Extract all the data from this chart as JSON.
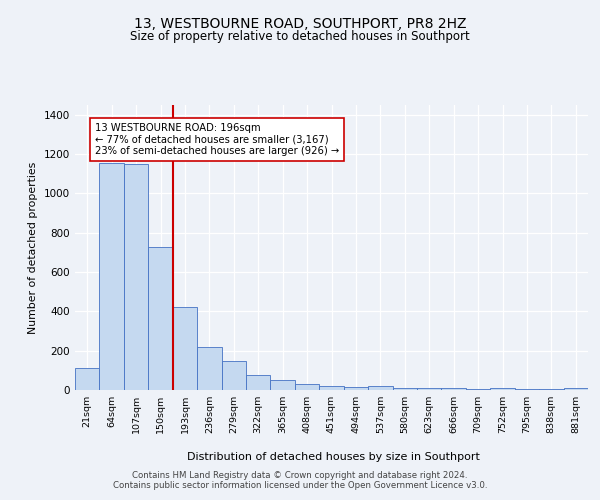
{
  "title": "13, WESTBOURNE ROAD, SOUTHPORT, PR8 2HZ",
  "subtitle": "Size of property relative to detached houses in Southport",
  "xlabel": "Distribution of detached houses by size in Southport",
  "ylabel": "Number of detached properties",
  "categories": [
    "21sqm",
    "64sqm",
    "107sqm",
    "150sqm",
    "193sqm",
    "236sqm",
    "279sqm",
    "322sqm",
    "365sqm",
    "408sqm",
    "451sqm",
    "494sqm",
    "537sqm",
    "580sqm",
    "623sqm",
    "666sqm",
    "709sqm",
    "752sqm",
    "795sqm",
    "838sqm",
    "881sqm"
  ],
  "bar_heights": [
    110,
    1155,
    1150,
    730,
    420,
    220,
    150,
    75,
    50,
    30,
    20,
    15,
    20,
    10,
    10,
    10,
    5,
    10,
    5,
    5,
    10
  ],
  "bar_color": "#c5d9f0",
  "bar_edge_color": "#4472c4",
  "vline_color": "#cc0000",
  "annotation_text": "13 WESTBOURNE ROAD: 196sqm\n← 77% of detached houses are smaller (3,167)\n23% of semi-detached houses are larger (926) →",
  "annotation_box_color": "#ffffff",
  "annotation_box_edge": "#cc0000",
  "ylim": [
    0,
    1450
  ],
  "yticks": [
    0,
    200,
    400,
    600,
    800,
    1000,
    1200,
    1400
  ],
  "footer_line1": "Contains HM Land Registry data © Crown copyright and database right 2024.",
  "footer_line2": "Contains public sector information licensed under the Open Government Licence v3.0.",
  "bg_color": "#eef2f8",
  "plot_bg_color": "#eef2f8"
}
